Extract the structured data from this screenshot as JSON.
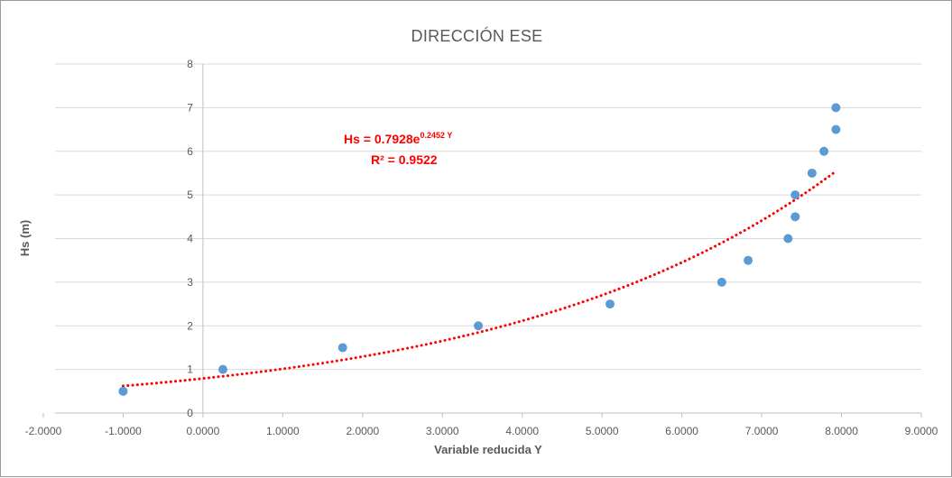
{
  "chart_data": {
    "type": "scatter",
    "title": "DIRECCIÓN ESE",
    "xlabel": "Variable reducida Y",
    "ylabel": "Hs (m)",
    "xlim": [
      -2,
      9
    ],
    "ylim": [
      0,
      8
    ],
    "x_tick_labels": [
      "-2.0000",
      "-1.0000",
      "0.0000",
      "1.0000",
      "2.0000",
      "3.0000",
      "4.0000",
      "5.0000",
      "6.0000",
      "7.0000",
      "8.0000",
      "9.0000"
    ],
    "y_tick_labels": [
      "0",
      "1",
      "2",
      "3",
      "4",
      "5",
      "6",
      "7",
      "8"
    ],
    "grid": "horizontal",
    "legend": "none",
    "series": [
      {
        "color": "#5b9bd5",
        "points": [
          {
            "x": -1.0,
            "y": 0.5
          },
          {
            "x": 0.25,
            "y": 1.0
          },
          {
            "x": 1.75,
            "y": 1.5
          },
          {
            "x": 3.45,
            "y": 2.0
          },
          {
            "x": 5.1,
            "y": 2.5
          },
          {
            "x": 6.5,
            "y": 3.0
          },
          {
            "x": 6.83,
            "y": 3.5
          },
          {
            "x": 7.33,
            "y": 4.0
          },
          {
            "x": 7.42,
            "y": 4.5
          },
          {
            "x": 7.42,
            "y": 5.0
          },
          {
            "x": 7.63,
            "y": 5.5
          },
          {
            "x": 7.78,
            "y": 6.0
          },
          {
            "x": 7.93,
            "y": 6.5
          },
          {
            "x": 7.93,
            "y": 7.0
          }
        ]
      }
    ],
    "trendline": {
      "type": "exponential",
      "a": 0.7928,
      "b": 0.2452,
      "x_range": [
        -1.0,
        7.93
      ],
      "color": "#ff0000",
      "style": "dotted",
      "equation_prefix": "Hs = 0.7928e",
      "equation_exponent": "0.2452 Y",
      "r2_label": "R² = 0.9522"
    }
  }
}
